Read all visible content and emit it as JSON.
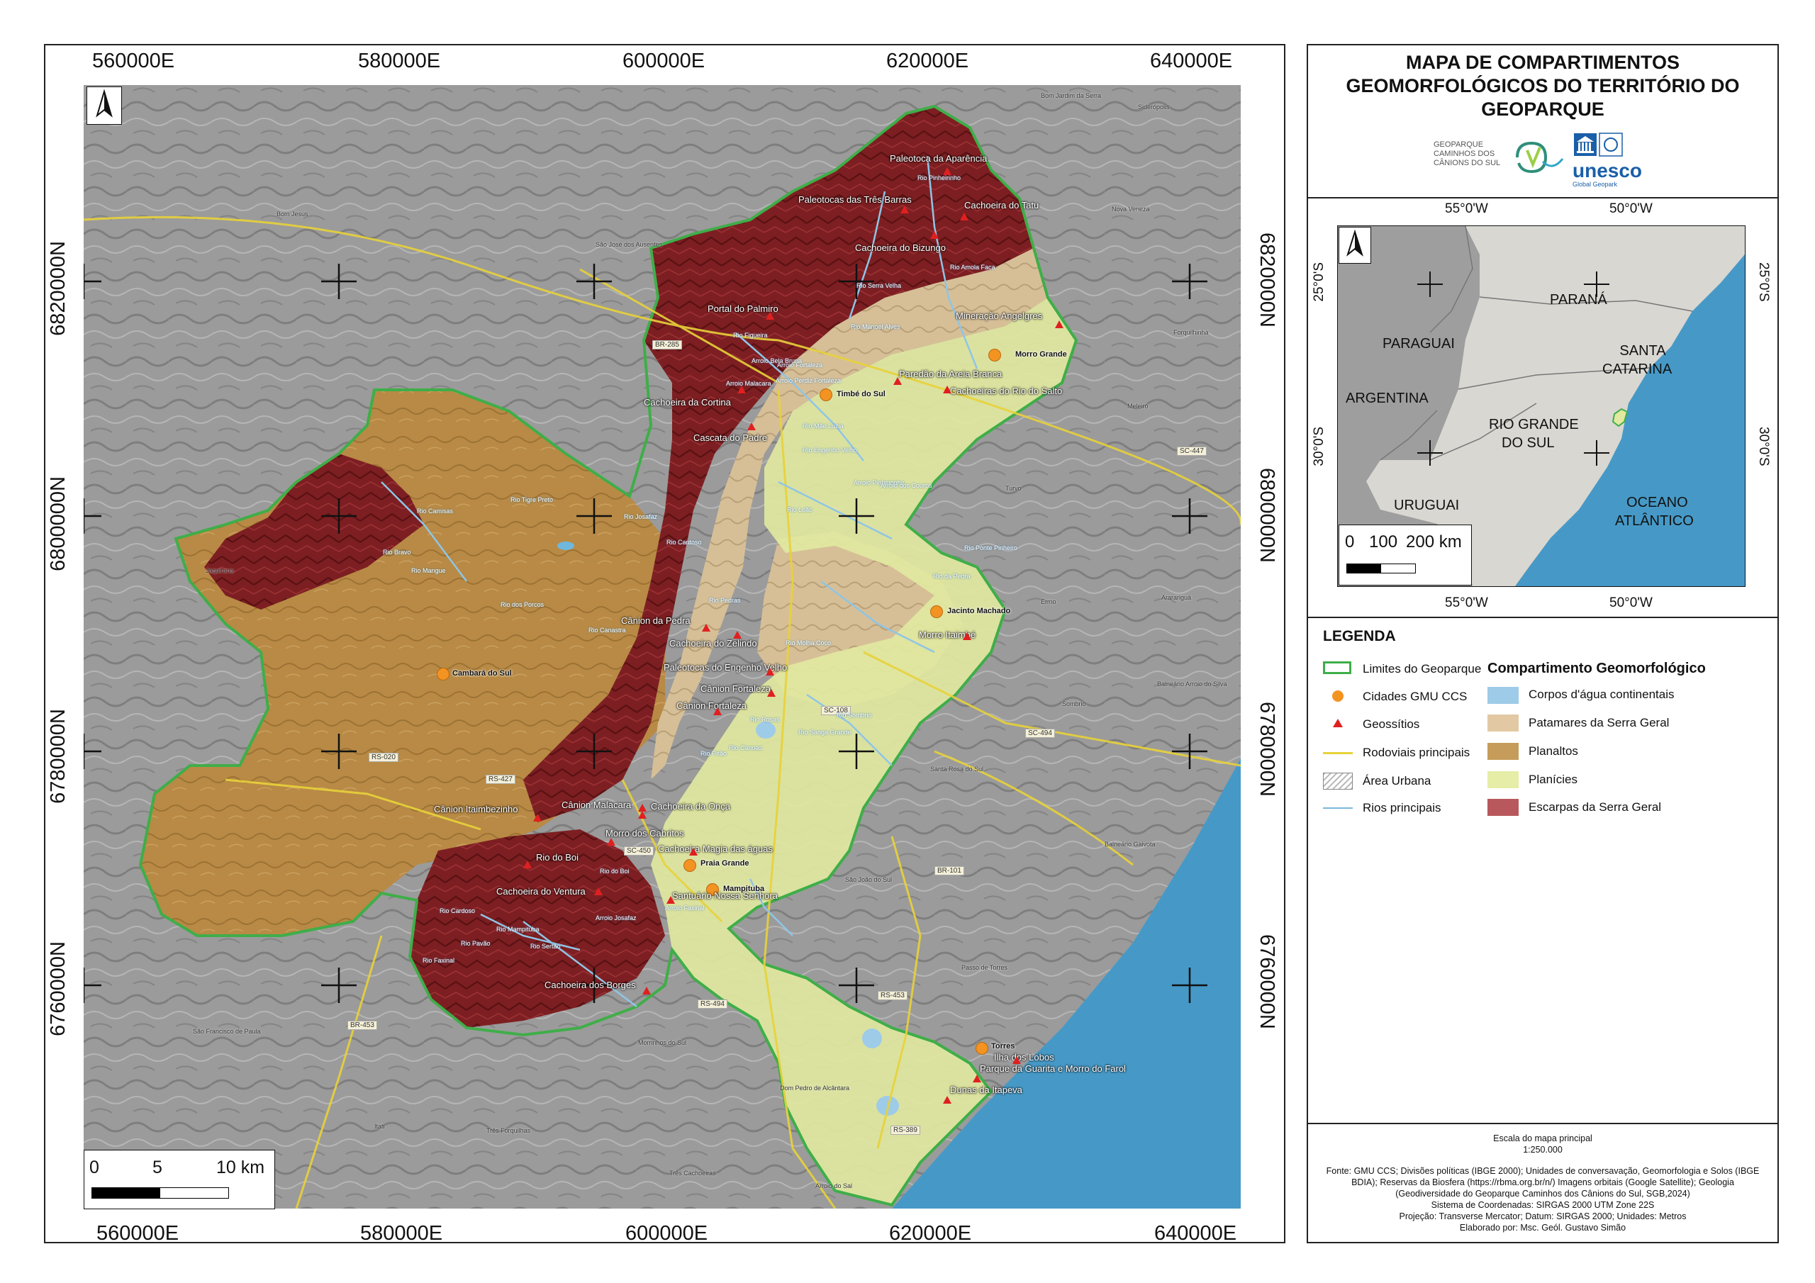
{
  "map": {
    "x_ticks_top": [
      "560000E",
      "580000E",
      "600000E",
      "620000E",
      "640000E"
    ],
    "x_ticks_bottom": [
      "560000E",
      "580000E",
      "600000E",
      "620000E",
      "640000E"
    ],
    "y_ticks": [
      "6820000N",
      "6800000N",
      "6780000N",
      "6760000N"
    ],
    "north": "N",
    "scale_labels": [
      "0",
      "5",
      "10 km"
    ],
    "cities": [
      "Morro Grande",
      "Timbé do Sul",
      "Jacinto Machado",
      "Cambará do Sul",
      "Praia Grande",
      "Mampituba",
      "Torres"
    ],
    "geosites": [
      "Paleotoca da Aparência",
      "Paleotocas das Três Barras",
      "Cachoeira do Tatu",
      "Cachoeira do Bizungo",
      "Portal do Palmiro",
      "Mineração Angelgres",
      "Paredão da Areia Branca",
      "Cachoeiras do Rio do Salto",
      "Cachoeira da Cortina",
      "Cascata do Padre",
      "Cânion da Pedra",
      "Cachoeira do Zelindo",
      "Paleotocas do Engenho Velho",
      "Morro Itaimbé",
      "Cânion Fortaleza",
      "Cânion Fortaleza",
      "Cânion Malacara",
      "Cânion Itaimbezinho",
      "Cachoeira da Onça",
      "Morro dos Cabritos",
      "Cachoeira Magia das águas",
      "Rio do Boi",
      "Cachoeira do Ventura",
      "Santuário Nossa Senhora",
      "Cachoeira dos Borges",
      "Ilha dos Lobos",
      "Parque da Guarita e Morro do Farol",
      "Dunas da Itapeva"
    ],
    "roads": [
      "BR-285",
      "SC-447",
      "SC-108",
      "SC-494",
      "RS-020",
      "RS-427",
      "SC-450",
      "BR-101",
      "RS-494",
      "RS-453",
      "BR-453",
      "RS-389"
    ],
    "rivers": [
      "Rio Pinheirinho",
      "Rio Amola Faca",
      "Rio Serra Velha",
      "Rio Figueira",
      "Rio Manoel Alves",
      "Rio Mãe Luzia",
      "Rio Engenho Velho",
      "Rio Leão",
      "Rio Canoas",
      "Rio Josafaz",
      "Rio do Boi",
      "Rio Mampituba",
      "Rio Cardoso",
      "Rio Pavão",
      "Rio Faxinal",
      "Rio Bravo",
      "Rio Camisas",
      "Rio Tigre Preto",
      "Rio Sertão",
      "Arroio Josafaz",
      "Arroio Faxinal",
      "Arroio Perdiz Fortaleza",
      "Arroio Fortaleza",
      "Arroio Bela Bruna",
      "Arroio Malacara",
      "Arroio Pinheirinho",
      "Arroio dos Couros",
      "Rio Ponte Pinheiro",
      "Rio da Pedra",
      "Rio Rosas",
      "Rio Pirão",
      "Rio Molha Coco",
      "Rio Sanga Grande",
      "Rio Sombrio",
      "Rio Pedras",
      "Rio Cantoso",
      "Rio Canastra",
      "Rio Mangue",
      "Rio dos Porcos"
    ],
    "places": [
      "Bom Jardim da Serra",
      "Siderópolis",
      "Nova Veneza",
      "Forquilhinha",
      "Meleiro",
      "Turvo",
      "Ermo",
      "Araranguá",
      "Sombrio",
      "Balneário Arroio do Silva",
      "Santa Rosa do Sul",
      "São João do Sul",
      "Balneário Gaivota",
      "Passo de Torres",
      "São José dos Ausentes",
      "Bom Jesus",
      "Jaquirana",
      "São Francisco de Paula",
      "Itati",
      "Três Forquilhas",
      "Morrinhos do Sul",
      "Dom Pedro de Alcântara",
      "Três Cachoeiras",
      "Arroio do Sal"
    ]
  },
  "panel": {
    "title_lines": [
      "MAPA DE COMPARTIMENTOS",
      "GEOMORFOLÓGICOS DO TERRITÓRIO DO",
      "GEOPARQUE"
    ],
    "logo_text": [
      "GEOPARQUE",
      "CAMINHOS DOS",
      "CÂNIONS DO SUL"
    ],
    "unesco": "unesco",
    "unesco_sub": "Global Geopark",
    "inset": {
      "x_ticks": [
        "55°0'W",
        "50°0'W"
      ],
      "y_ticks": [
        "25°0'S",
        "30°0'S"
      ],
      "labels": [
        "PARANÁ",
        "PARAGUAI",
        "SANTA",
        "CATARINA",
        "ARGENTINA",
        "RIO GRANDE",
        "DO SUL",
        "URUGUAI",
        "OCEANO",
        "ATLÂNTICO"
      ],
      "scale_labels": [
        "0",
        "100",
        "200 km"
      ]
    },
    "legend_title": "LEGENDA",
    "legend_items": [
      "Limites do Geoparque",
      "Cidades GMU CCS",
      "Geossítios",
      "Rodoviais principais",
      "Área Urbana",
      "Rios principais"
    ],
    "legend_colors": [
      "#3fae49",
      "#f39322",
      "#e02020",
      "#e8d23a",
      "#cccccc",
      "#7ab8dc"
    ],
    "compartment_title": "Compartimento Geomorfológico",
    "compartments": [
      {
        "label": "Corpos d'água continentais",
        "color": "#9ecbe8"
      },
      {
        "label": "Patamares da Serra Geral",
        "color": "#e2c9a4"
      },
      {
        "label": "Planaltos",
        "color": "#c69c5a"
      },
      {
        "label": "Planícies",
        "color": "#e6eda6"
      },
      {
        "label": "Escarpas da Serra Geral",
        "color": "#b8585c"
      }
    ],
    "scale_title": "Escala do mapa principal",
    "scale_value": "1:250.000",
    "credits": [
      "Fonte: GMU CCS; Divisões políticas (IBGE 2000); Unidades de conversavação, Geomorfologia e Solos (IBGE",
      "BDIA); Reservas da Biosfera (https://rbma.org.br/n/) Imagens orbitais (Google Satellite); Geologia",
      "(Geodiversidade do Geoparque Caminhos dos Cânions do Sul, SGB,2024)",
      "Sistema de Coordenadas: SIRGAS 2000 UTM Zone 22S",
      "Projeção: Transverse Mercator; Datum: SIRGAS 2000; Unidades: Metros",
      "Elaborado por: Msc. Geól. Gustavo Simão"
    ]
  }
}
